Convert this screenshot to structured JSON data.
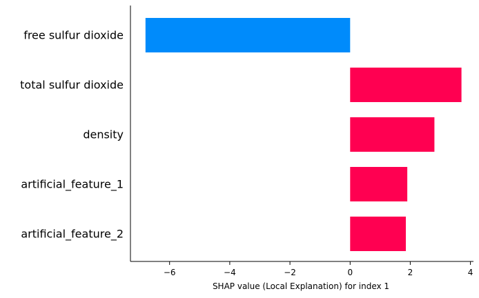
{
  "chart_data": {
    "type": "bar",
    "orientation": "horizontal",
    "categories": [
      "free sulfur dioxide",
      "total sulfur dioxide",
      "density",
      "artificial_feature_1",
      "artificial_feature_2"
    ],
    "values": [
      -6.8,
      3.7,
      2.8,
      1.9,
      1.85
    ],
    "xlabel": "SHAP value (Local Explanation) for index 1",
    "ylabel": "",
    "xlim": [
      -7.3,
      4.1
    ],
    "xticks": [
      -6,
      -4,
      -2,
      0,
      2,
      4
    ],
    "xtick_labels": [
      "−6",
      "−4",
      "−2",
      "0",
      "2",
      "4"
    ],
    "colors": {
      "positive": "#ff0051",
      "negative": "#008bfb"
    },
    "grid": false,
    "legend": "none"
  }
}
